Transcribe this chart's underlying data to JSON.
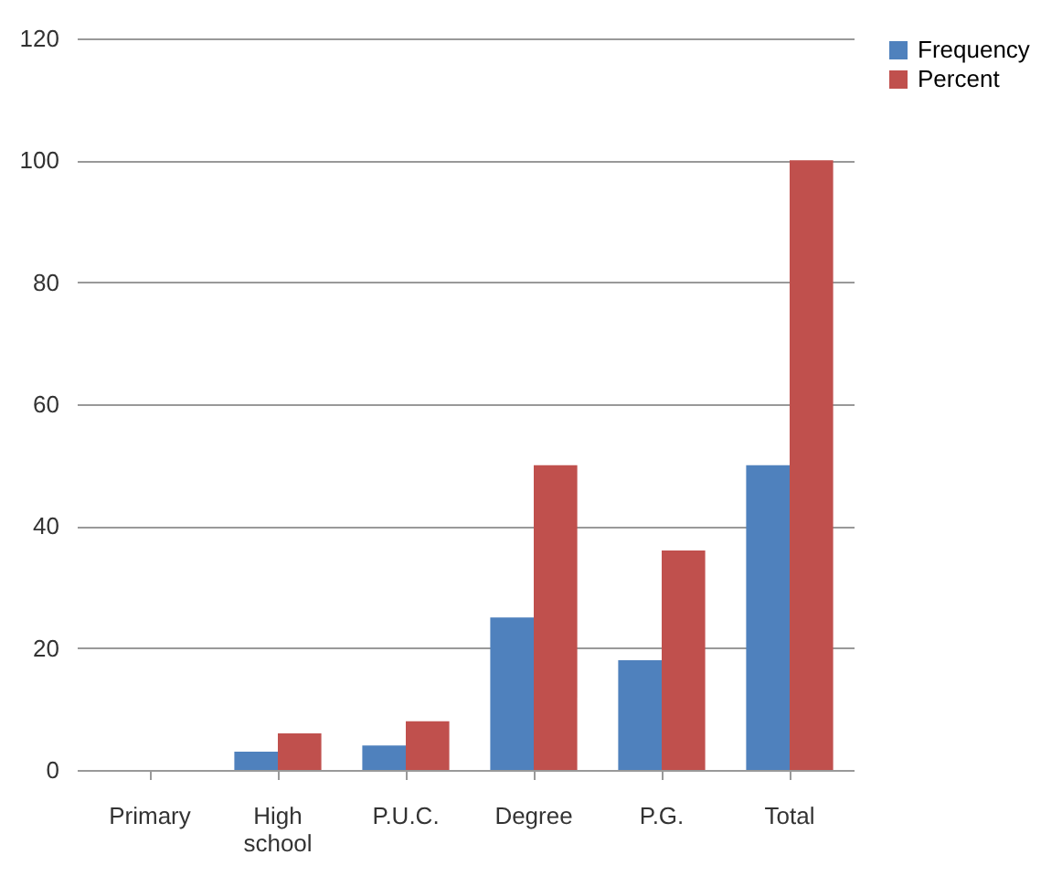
{
  "chart_data": {
    "type": "bar",
    "categories": [
      "Primary",
      "High school",
      "P.U.C.",
      "Degree",
      "P.G.",
      "Total"
    ],
    "series": [
      {
        "name": "Frequency",
        "color": "#4f81bd",
        "values": [
          0,
          3,
          4,
          25,
          18,
          50
        ]
      },
      {
        "name": "Percent",
        "color": "#c0504d",
        "values": [
          0,
          6,
          8,
          50,
          36,
          100
        ]
      }
    ],
    "ylim": [
      0,
      120
    ],
    "yticks": [
      0,
      20,
      40,
      60,
      80,
      100,
      120
    ],
    "grid": "y",
    "legend": "right"
  }
}
